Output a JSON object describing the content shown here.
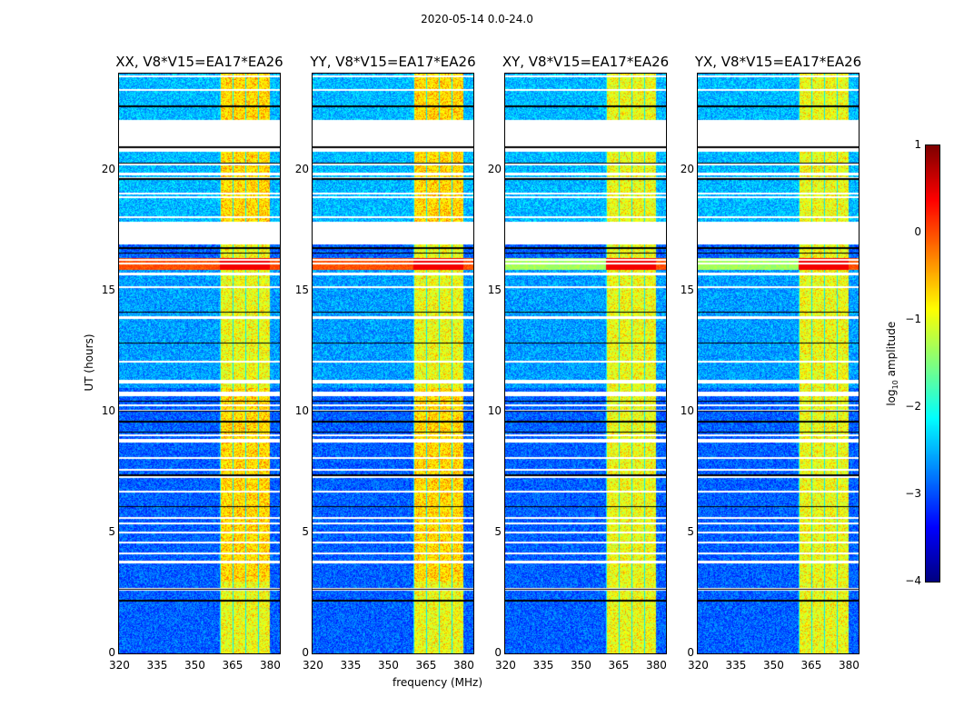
{
  "chart_data": {
    "type": "heatmap",
    "title": "2020-05-14 0.0-24.0",
    "xlabel": "frequency (MHz)",
    "ylabel": "UT (hours)",
    "xlim": [
      320,
      384
    ],
    "ylim": [
      0,
      24
    ],
    "xticks": [
      "320",
      "335",
      "350",
      "365",
      "380"
    ],
    "xtick_values": [
      320,
      335,
      350,
      365,
      380
    ],
    "yticks": [
      "0",
      "5",
      "10",
      "15",
      "20"
    ],
    "ytick_values": [
      0,
      5,
      10,
      15,
      20
    ],
    "panels": [
      {
        "title": "XX, V8*V15=EA17*EA26"
      },
      {
        "title": "YY, V8*V15=EA17*EA26"
      },
      {
        "title": "XY, V8*V15=EA17*EA26"
      },
      {
        "title": "YX, V8*V15=EA17*EA26"
      }
    ],
    "rfi_band_mhz": [
      360,
      380
    ],
    "flagged_gaps_hours": [
      [
        20.8,
        22.1
      ],
      [
        16.95,
        17.9
      ],
      [
        10.65,
        10.85
      ]
    ],
    "strong_rfi_hours": [
      15.9,
      16.4
    ],
    "colorbar": {
      "label": "log10 amplitude",
      "label_main": "log",
      "label_sub": "10",
      "label_rest": " amplitude",
      "range": [
        -4,
        1
      ],
      "ticks": [
        "1",
        "0",
        "−1",
        "−2",
        "−3",
        "−4"
      ],
      "tick_values": [
        1,
        0,
        -1,
        -2,
        -3,
        -4
      ],
      "colormap": "jet"
    }
  }
}
